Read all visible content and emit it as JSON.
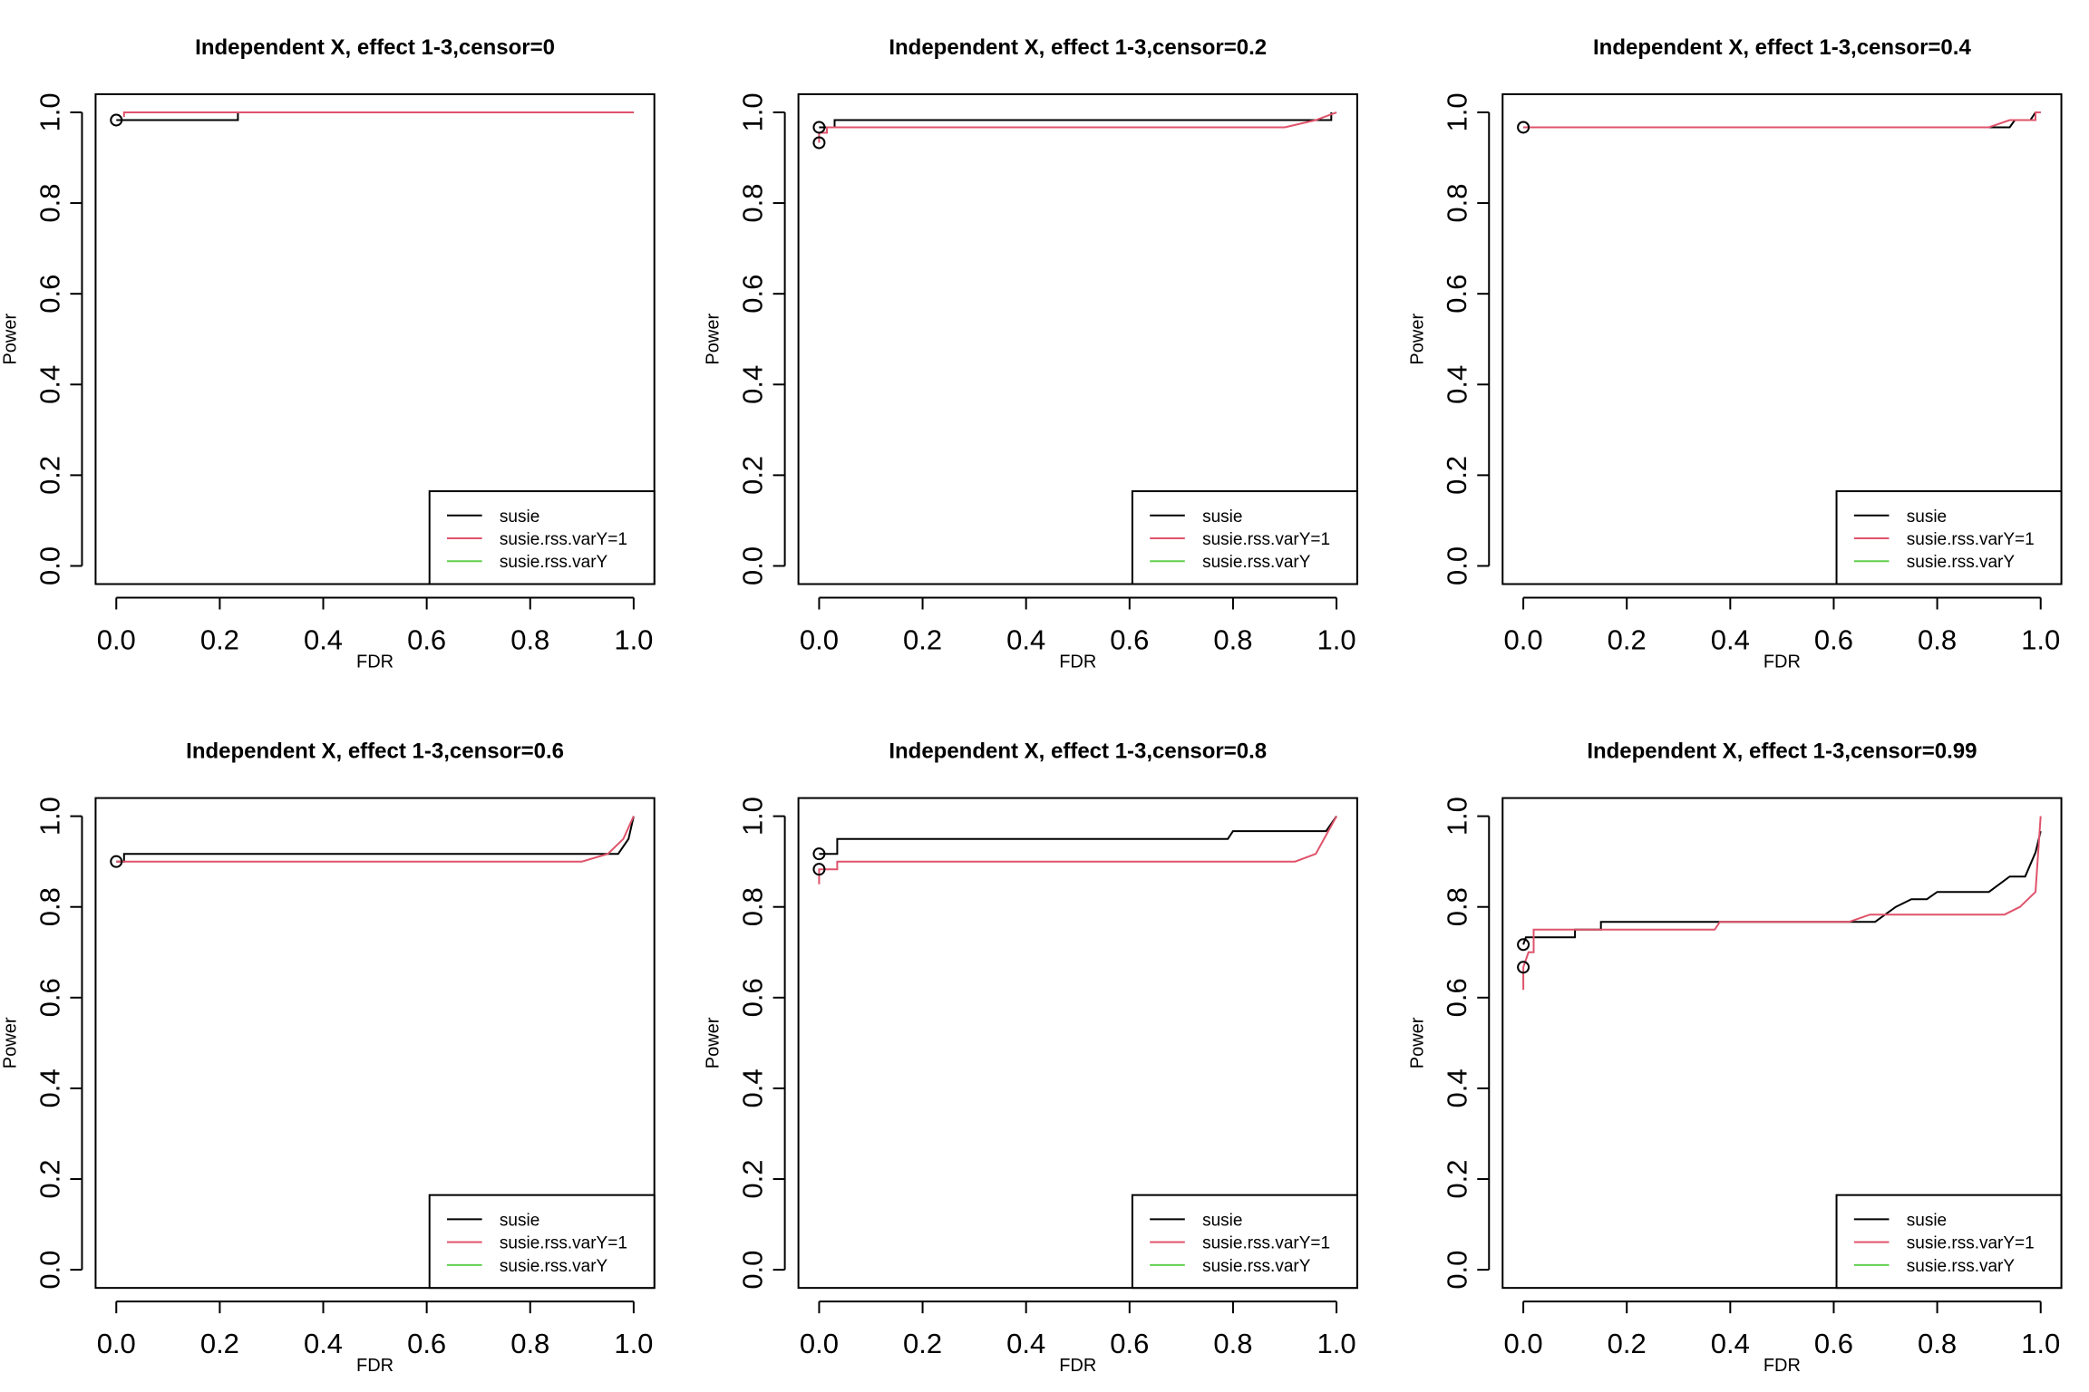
{
  "figure": {
    "layout": "2x3 grid of power vs FDR panels"
  },
  "chart_data": [
    {
      "type": "line",
      "title": "Independent X, effect 1-3,censor=0",
      "xlabel": "FDR",
      "ylabel": "Power",
      "xlim": [
        0,
        1
      ],
      "ylim": [
        0,
        1
      ],
      "x_ticks": [
        "0.0",
        "0.2",
        "0.4",
        "0.6",
        "0.8",
        "1.0"
      ],
      "y_ticks": [
        "0.0",
        "0.2",
        "0.4",
        "0.6",
        "0.8",
        "1.0"
      ],
      "legend_position": "bottom-right",
      "series": [
        {
          "name": "susie",
          "color": "#000000",
          "start_marker": [
            0.0,
            0.983
          ],
          "points": [
            [
              0.0,
              0.983
            ],
            [
              0.235,
              0.983
            ],
            [
              0.235,
              1.0
            ],
            [
              1.0,
              1.0
            ]
          ]
        },
        {
          "name": "susie.rss.varY=1",
          "color": "#DF536B",
          "start_marker": null,
          "points": [
            [
              0.015,
              0.99
            ],
            [
              0.015,
              1.0
            ],
            [
              1.0,
              1.0
            ]
          ]
        },
        {
          "name": "susie.rss.varY",
          "color": "#61D04F",
          "start_marker": null,
          "points": []
        }
      ]
    },
    {
      "type": "line",
      "title": "Independent X, effect 1-3,censor=0.2",
      "xlabel": "FDR",
      "ylabel": "Power",
      "xlim": [
        0,
        1
      ],
      "ylim": [
        0,
        1
      ],
      "x_ticks": [
        "0.0",
        "0.2",
        "0.4",
        "0.6",
        "0.8",
        "1.0"
      ],
      "y_ticks": [
        "0.0",
        "0.2",
        "0.4",
        "0.6",
        "0.8",
        "1.0"
      ],
      "legend_position": "bottom-right",
      "series": [
        {
          "name": "susie",
          "color": "#000000",
          "start_marker": [
            0.0,
            0.967
          ],
          "points": [
            [
              0.0,
              0.967
            ],
            [
              0.03,
              0.967
            ],
            [
              0.03,
              0.983
            ],
            [
              0.99,
              0.983
            ],
            [
              0.99,
              1.0
            ]
          ]
        },
        {
          "name": "susie.rss.varY=1",
          "color": "#DF536B",
          "start_marker": [
            0.0,
            0.933
          ],
          "points": [
            [
              0.0,
              0.933
            ],
            [
              0.0,
              0.955
            ],
            [
              0.015,
              0.955
            ],
            [
              0.015,
              0.967
            ],
            [
              0.9,
              0.967
            ],
            [
              0.96,
              0.983
            ],
            [
              1.0,
              1.0
            ]
          ]
        },
        {
          "name": "susie.rss.varY",
          "color": "#61D04F",
          "start_marker": null,
          "points": []
        }
      ]
    },
    {
      "type": "line",
      "title": "Independent X, effect 1-3,censor=0.4",
      "xlabel": "FDR",
      "ylabel": "Power",
      "xlim": [
        0,
        1
      ],
      "ylim": [
        0,
        1
      ],
      "x_ticks": [
        "0.0",
        "0.2",
        "0.4",
        "0.6",
        "0.8",
        "1.0"
      ],
      "y_ticks": [
        "0.0",
        "0.2",
        "0.4",
        "0.6",
        "0.8",
        "1.0"
      ],
      "legend_position": "bottom-right",
      "series": [
        {
          "name": "susie",
          "color": "#000000",
          "start_marker": [
            0.0,
            0.967
          ],
          "points": [
            [
              0.0,
              0.967
            ],
            [
              0.88,
              0.967
            ],
            [
              0.94,
              0.967
            ],
            [
              0.95,
              0.983
            ],
            [
              0.98,
              0.983
            ],
            [
              0.99,
              1.0
            ],
            [
              1.0,
              1.0
            ]
          ]
        },
        {
          "name": "susie.rss.varY=1",
          "color": "#DF536B",
          "start_marker": null,
          "points": [
            [
              0.0,
              0.967
            ],
            [
              0.9,
              0.967
            ],
            [
              0.94,
              0.983
            ],
            [
              0.99,
              0.983
            ],
            [
              0.99,
              1.0
            ],
            [
              1.0,
              1.0
            ]
          ]
        },
        {
          "name": "susie.rss.varY",
          "color": "#61D04F",
          "start_marker": null,
          "points": []
        }
      ]
    },
    {
      "type": "line",
      "title": "Independent X, effect 1-3,censor=0.6",
      "xlabel": "FDR",
      "ylabel": "Power",
      "xlim": [
        0,
        1
      ],
      "ylim": [
        0,
        1
      ],
      "x_ticks": [
        "0.0",
        "0.2",
        "0.4",
        "0.6",
        "0.8",
        "1.0"
      ],
      "y_ticks": [
        "0.0",
        "0.2",
        "0.4",
        "0.6",
        "0.8",
        "1.0"
      ],
      "legend_position": "bottom-right",
      "series": [
        {
          "name": "susie",
          "color": "#000000",
          "start_marker": [
            0.0,
            0.9
          ],
          "points": [
            [
              0.0,
              0.9
            ],
            [
              0.015,
              0.9
            ],
            [
              0.015,
              0.917
            ],
            [
              0.97,
              0.917
            ],
            [
              0.99,
              0.95
            ],
            [
              1.0,
              1.0
            ]
          ]
        },
        {
          "name": "susie.rss.varY=1",
          "color": "#DF536B",
          "start_marker": null,
          "points": [
            [
              0.0,
              0.9
            ],
            [
              0.9,
              0.9
            ],
            [
              0.95,
              0.917
            ],
            [
              0.98,
              0.95
            ],
            [
              1.0,
              1.0
            ]
          ]
        },
        {
          "name": "susie.rss.varY",
          "color": "#61D04F",
          "start_marker": null,
          "points": []
        }
      ]
    },
    {
      "type": "line",
      "title": "Independent X, effect 1-3,censor=0.8",
      "xlabel": "FDR",
      "ylabel": "Power",
      "xlim": [
        0,
        1
      ],
      "ylim": [
        0,
        1
      ],
      "x_ticks": [
        "0.0",
        "0.2",
        "0.4",
        "0.6",
        "0.8",
        "1.0"
      ],
      "y_ticks": [
        "0.0",
        "0.2",
        "0.4",
        "0.6",
        "0.8",
        "1.0"
      ],
      "legend_position": "bottom-right",
      "series": [
        {
          "name": "susie",
          "color": "#000000",
          "start_marker": [
            0.0,
            0.917
          ],
          "points": [
            [
              0.0,
              0.917
            ],
            [
              0.035,
              0.917
            ],
            [
              0.035,
              0.95
            ],
            [
              0.79,
              0.95
            ],
            [
              0.8,
              0.967
            ],
            [
              0.98,
              0.967
            ],
            [
              1.0,
              1.0
            ]
          ]
        },
        {
          "name": "susie.rss.varY=1",
          "color": "#DF536B",
          "start_marker": [
            0.0,
            0.883
          ],
          "points": [
            [
              0.0,
              0.85
            ],
            [
              0.0,
              0.883
            ],
            [
              0.035,
              0.883
            ],
            [
              0.035,
              0.9
            ],
            [
              0.92,
              0.9
            ],
            [
              0.96,
              0.917
            ],
            [
              1.0,
              1.0
            ]
          ]
        },
        {
          "name": "susie.rss.varY",
          "color": "#61D04F",
          "start_marker": null,
          "points": []
        }
      ]
    },
    {
      "type": "line",
      "title": "Independent X, effect 1-3,censor=0.99",
      "xlabel": "FDR",
      "ylabel": "Power",
      "xlim": [
        0,
        1
      ],
      "ylim": [
        0,
        1
      ],
      "x_ticks": [
        "0.0",
        "0.2",
        "0.4",
        "0.6",
        "0.8",
        "1.0"
      ],
      "y_ticks": [
        "0.0",
        "0.2",
        "0.4",
        "0.6",
        "0.8",
        "1.0"
      ],
      "legend_position": "bottom-right",
      "series": [
        {
          "name": "susie",
          "color": "#000000",
          "start_marker": [
            0.0,
            0.717
          ],
          "points": [
            [
              0.0,
              0.717
            ],
            [
              0.005,
              0.733
            ],
            [
              0.1,
              0.733
            ],
            [
              0.1,
              0.75
            ],
            [
              0.15,
              0.75
            ],
            [
              0.15,
              0.767
            ],
            [
              0.65,
              0.767
            ],
            [
              0.68,
              0.767
            ],
            [
              0.72,
              0.8
            ],
            [
              0.75,
              0.817
            ],
            [
              0.78,
              0.817
            ],
            [
              0.8,
              0.833
            ],
            [
              0.9,
              0.833
            ],
            [
              0.92,
              0.85
            ],
            [
              0.94,
              0.867
            ],
            [
              0.97,
              0.867
            ],
            [
              0.99,
              0.92
            ],
            [
              1.0,
              0.967
            ]
          ]
        },
        {
          "name": "susie.rss.varY=1",
          "color": "#DF536B",
          "start_marker": [
            0.0,
            0.667
          ],
          "points": [
            [
              0.0,
              0.617
            ],
            [
              0.0,
              0.667
            ],
            [
              0.01,
              0.7
            ],
            [
              0.02,
              0.7
            ],
            [
              0.02,
              0.75
            ],
            [
              0.37,
              0.75
            ],
            [
              0.38,
              0.767
            ],
            [
              0.63,
              0.767
            ],
            [
              0.67,
              0.783
            ],
            [
              0.93,
              0.783
            ],
            [
              0.96,
              0.8
            ],
            [
              0.99,
              0.833
            ],
            [
              1.0,
              1.0
            ]
          ]
        },
        {
          "name": "susie.rss.varY",
          "color": "#61D04F",
          "start_marker": null,
          "points": []
        }
      ]
    }
  ]
}
